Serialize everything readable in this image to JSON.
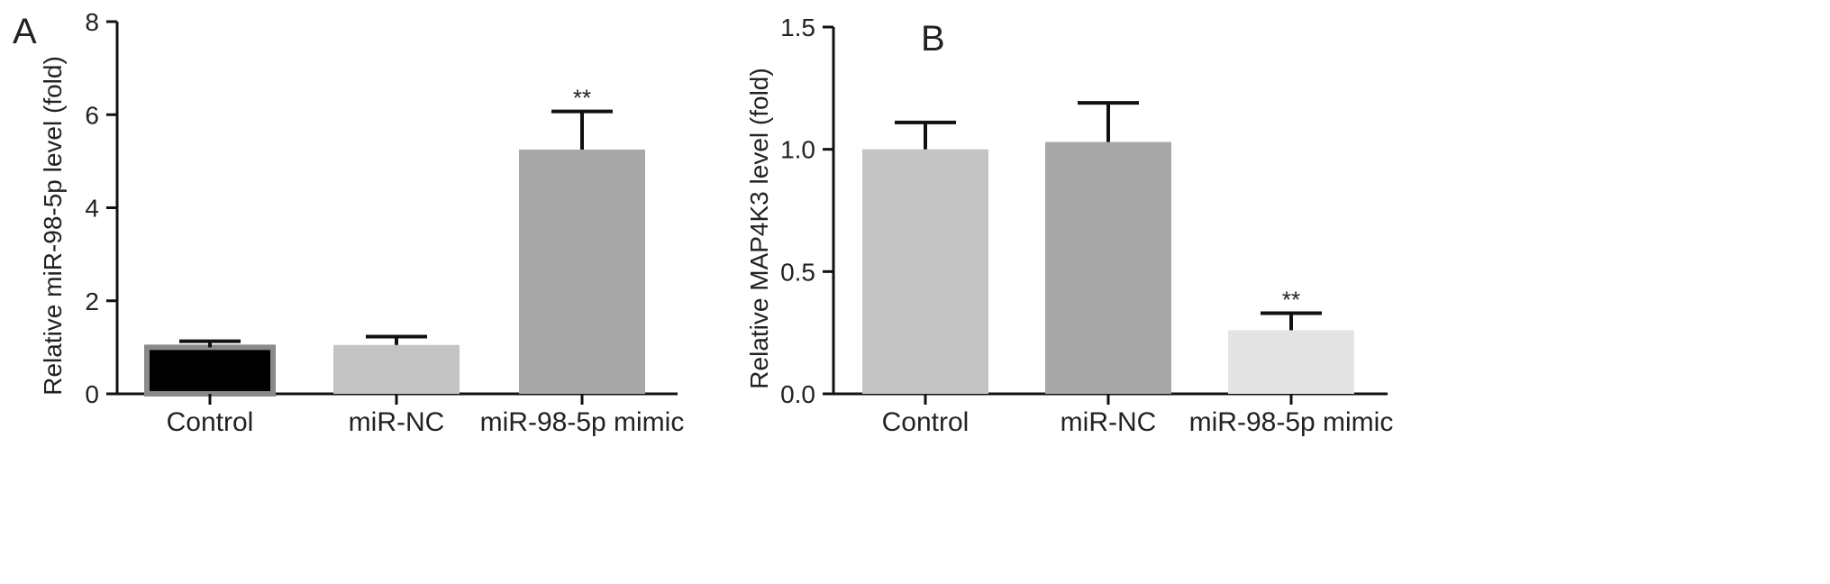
{
  "chart_data": [
    {
      "type": "bar",
      "panel": "A",
      "categories": [
        "Control",
        "miR-NC",
        "miR-98-5p mimic"
      ],
      "values": [
        1.0,
        1.05,
        5.25
      ],
      "errors": [
        0.13,
        0.18,
        0.82
      ],
      "significance": [
        "",
        "",
        "**"
      ],
      "colors": [
        "#000000",
        "#c4c4c4",
        "#a8a8a8"
      ],
      "ylabel": "Relative miR-98-5p level (fold)",
      "xlabel": "",
      "ylim": [
        0,
        8
      ],
      "yticks": [
        0,
        2,
        4,
        6,
        8
      ],
      "grid": false
    },
    {
      "type": "bar",
      "panel": "B",
      "categories": [
        "Control",
        "miR-NC",
        "miR-98-5p mimic"
      ],
      "values": [
        1.0,
        1.03,
        0.26
      ],
      "errors": [
        0.11,
        0.16,
        0.07
      ],
      "significance": [
        "",
        "",
        "**"
      ],
      "colors": [
        "#c4c4c4",
        "#a8a8a8",
        "#e4e4e4"
      ],
      "ylabel": "Relative MAP4K3 level (fold)",
      "xlabel": "",
      "ylim": [
        0,
        1.5
      ],
      "yticks": [
        0.0,
        0.5,
        1.0,
        1.5
      ],
      "tick_labels": [
        "0.0",
        "0.5",
        "1.0",
        "1.5"
      ],
      "grid": false
    }
  ]
}
